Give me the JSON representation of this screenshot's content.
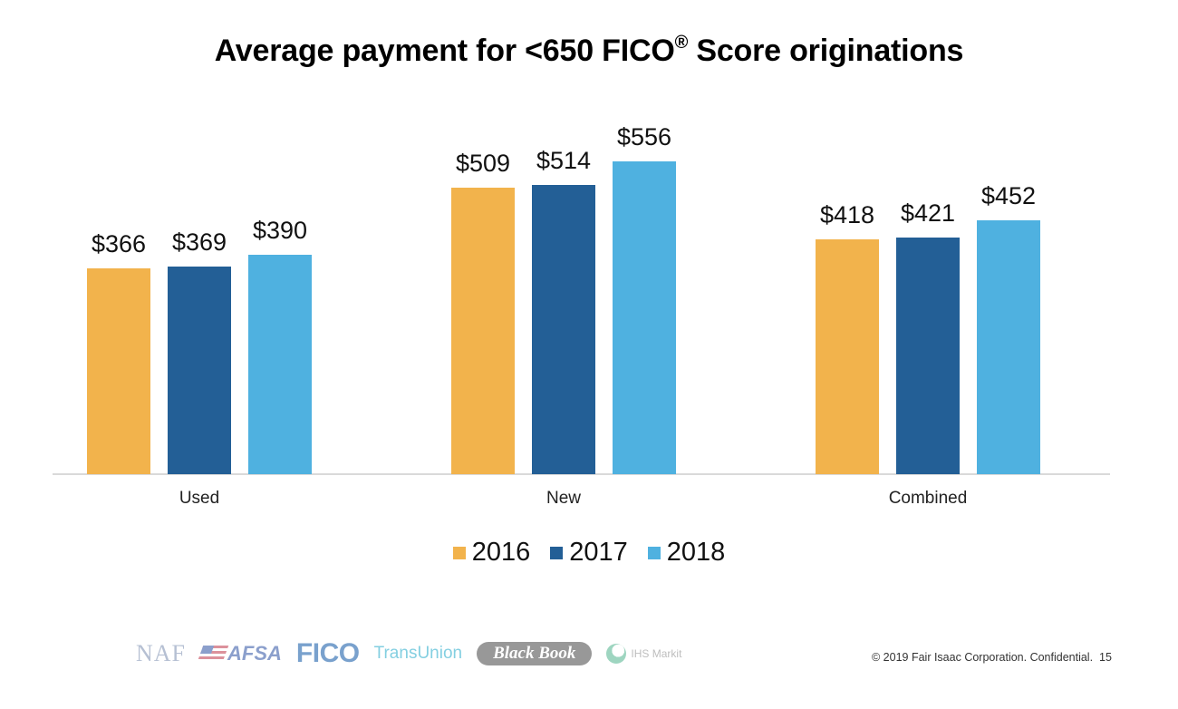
{
  "title": {
    "main": "Average payment for <650 FICO",
    "registered": "®",
    "suffix": " Score originations"
  },
  "chart_data": {
    "type": "bar",
    "title": "Average payment for <650 FICO® Score originations",
    "xlabel": "",
    "ylabel": "",
    "categories": [
      "Used",
      "New",
      "Combined"
    ],
    "series": [
      {
        "name": "2016",
        "color": "#f2b34c",
        "values": [
          366,
          509,
          418
        ],
        "labels": [
          "$366",
          "$509",
          "$418"
        ]
      },
      {
        "name": "2017",
        "color": "#235f96",
        "values": [
          369,
          514,
          421
        ],
        "labels": [
          "$369",
          "$514",
          "$421"
        ]
      },
      {
        "name": "2018",
        "color": "#4fb1e0",
        "values": [
          390,
          556,
          452
        ],
        "labels": [
          "$390",
          "$556",
          "$452"
        ]
      }
    ],
    "value_format": "$",
    "grid": false,
    "y_axis_visible": false,
    "legend_position": "bottom"
  },
  "legend": [
    {
      "label": "2016",
      "color": "#f2b34c"
    },
    {
      "label": "2017",
      "color": "#235f96"
    },
    {
      "label": "2018",
      "color": "#4fb1e0"
    }
  ],
  "footer": {
    "logos": [
      "NAF",
      "AFSA",
      "FICO",
      "TransUnion",
      "Black Book",
      "IHS Markit"
    ],
    "copyright": "© 2019 Fair Isaac Corporation. Confidential.",
    "page_number": "15"
  }
}
